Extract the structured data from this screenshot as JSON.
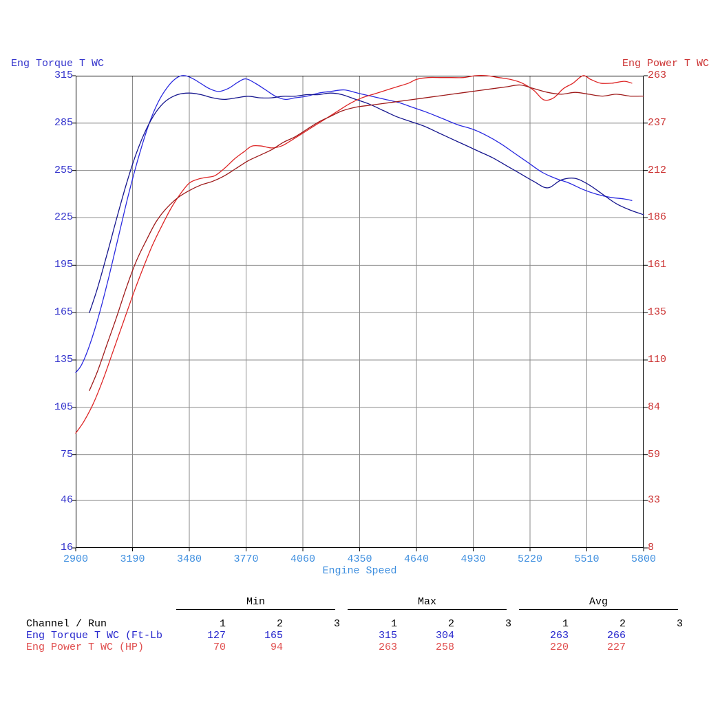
{
  "header": {
    "left_title": "Eng Torque T WC",
    "right_title": "Eng Power T WC"
  },
  "colors": {
    "left_axis": "#3333cc",
    "right_axis": "#cc3333",
    "x_axis": "#3f8fdf",
    "grid": "#8a8a8a",
    "border": "#000000",
    "table_text": "#000000",
    "torque_row": "#2525cc",
    "power_row": "#e04e4e"
  },
  "chart_data": {
    "type": "line",
    "grid": true,
    "x_axis": {
      "label": "Engine Speed",
      "range": [
        2900,
        5800
      ],
      "ticks": [
        2900,
        3190,
        3480,
        3770,
        4060,
        4350,
        4640,
        4930,
        5220,
        5510,
        5800
      ]
    },
    "y_left": {
      "title": "Eng Torque T WC",
      "units": "Ft-Lb",
      "range": [
        16,
        315
      ],
      "ticks": [
        315,
        285,
        255,
        225,
        195,
        165,
        135,
        105,
        75,
        46,
        16
      ]
    },
    "y_right": {
      "title": "Eng Power T WC",
      "units": "HP",
      "range": [
        8,
        263
      ],
      "ticks": [
        263,
        237,
        212,
        186,
        161,
        135,
        110,
        84,
        59,
        33,
        8
      ]
    },
    "series": [
      {
        "name": "Eng Torque T WC - Run 1",
        "axis": "left",
        "color": "#2a2ae0",
        "points": [
          [
            2900,
            127
          ],
          [
            2930,
            132
          ],
          [
            2970,
            144
          ],
          [
            3020,
            164
          ],
          [
            3070,
            188
          ],
          [
            3120,
            214
          ],
          [
            3170,
            240
          ],
          [
            3220,
            263
          ],
          [
            3270,
            283
          ],
          [
            3320,
            298
          ],
          [
            3370,
            308
          ],
          [
            3420,
            314
          ],
          [
            3460,
            315
          ],
          [
            3500,
            313
          ],
          [
            3540,
            310
          ],
          [
            3580,
            307
          ],
          [
            3630,
            305
          ],
          [
            3680,
            307
          ],
          [
            3730,
            311
          ],
          [
            3770,
            313
          ],
          [
            3820,
            310
          ],
          [
            3870,
            306
          ],
          [
            3920,
            302
          ],
          [
            3970,
            300
          ],
          [
            4020,
            301
          ],
          [
            4080,
            302
          ],
          [
            4140,
            304
          ],
          [
            4200,
            305
          ],
          [
            4270,
            306
          ],
          [
            4340,
            304
          ],
          [
            4410,
            302
          ],
          [
            4480,
            300
          ],
          [
            4550,
            298
          ],
          [
            4620,
            295
          ],
          [
            4690,
            292
          ],
          [
            4770,
            288
          ],
          [
            4850,
            284
          ],
          [
            4930,
            281
          ],
          [
            5000,
            277
          ],
          [
            5070,
            272
          ],
          [
            5140,
            266
          ],
          [
            5210,
            260
          ],
          [
            5280,
            254
          ],
          [
            5350,
            250
          ],
          [
            5420,
            247
          ],
          [
            5490,
            243
          ],
          [
            5560,
            240
          ],
          [
            5630,
            238
          ],
          [
            5700,
            237
          ],
          [
            5740,
            236
          ]
        ]
      },
      {
        "name": "Eng Torque T WC - Run 2",
        "axis": "left",
        "color": "#16168e",
        "points": [
          [
            2970,
            165
          ],
          [
            3010,
            180
          ],
          [
            3060,
            202
          ],
          [
            3110,
            225
          ],
          [
            3160,
            247
          ],
          [
            3210,
            266
          ],
          [
            3260,
            281
          ],
          [
            3310,
            292
          ],
          [
            3360,
            299
          ],
          [
            3420,
            303
          ],
          [
            3480,
            304
          ],
          [
            3540,
            303
          ],
          [
            3600,
            301
          ],
          [
            3660,
            300
          ],
          [
            3720,
            301
          ],
          [
            3780,
            302
          ],
          [
            3840,
            301
          ],
          [
            3900,
            301
          ],
          [
            3960,
            302
          ],
          [
            4020,
            302
          ],
          [
            4080,
            303
          ],
          [
            4140,
            303
          ],
          [
            4200,
            304
          ],
          [
            4260,
            303
          ],
          [
            4330,
            300
          ],
          [
            4400,
            297
          ],
          [
            4470,
            293
          ],
          [
            4540,
            289
          ],
          [
            4610,
            286
          ],
          [
            4680,
            283
          ],
          [
            4750,
            279
          ],
          [
            4820,
            275
          ],
          [
            4890,
            271
          ],
          [
            4960,
            267
          ],
          [
            5030,
            263
          ],
          [
            5100,
            258
          ],
          [
            5170,
            253
          ],
          [
            5240,
            248
          ],
          [
            5310,
            244
          ],
          [
            5380,
            249
          ],
          [
            5450,
            250
          ],
          [
            5520,
            246
          ],
          [
            5590,
            240
          ],
          [
            5660,
            234
          ],
          [
            5730,
            230
          ],
          [
            5800,
            227
          ]
        ]
      },
      {
        "name": "Eng Power T WC - Run 1",
        "axis": "right",
        "color": "#dd2525",
        "points": [
          [
            2900,
            70
          ],
          [
            2940,
            76
          ],
          [
            2990,
            86
          ],
          [
            3040,
            99
          ],
          [
            3090,
            114
          ],
          [
            3140,
            129
          ],
          [
            3190,
            144
          ],
          [
            3240,
            158
          ],
          [
            3290,
            171
          ],
          [
            3340,
            182
          ],
          [
            3390,
            192
          ],
          [
            3440,
            200
          ],
          [
            3480,
            205
          ],
          [
            3520,
            207
          ],
          [
            3560,
            208
          ],
          [
            3610,
            209
          ],
          [
            3660,
            213
          ],
          [
            3710,
            218
          ],
          [
            3760,
            222
          ],
          [
            3800,
            225
          ],
          [
            3850,
            225
          ],
          [
            3900,
            224
          ],
          [
            3950,
            225
          ],
          [
            4000,
            228
          ],
          [
            4060,
            232
          ],
          [
            4120,
            236
          ],
          [
            4180,
            240
          ],
          [
            4240,
            244
          ],
          [
            4300,
            248
          ],
          [
            4360,
            251
          ],
          [
            4420,
            253
          ],
          [
            4480,
            255
          ],
          [
            4540,
            257
          ],
          [
            4600,
            259
          ],
          [
            4640,
            261
          ],
          [
            4700,
            262
          ],
          [
            4760,
            262
          ],
          [
            4820,
            262
          ],
          [
            4880,
            262
          ],
          [
            4940,
            263
          ],
          [
            5000,
            263
          ],
          [
            5060,
            262
          ],
          [
            5120,
            261
          ],
          [
            5180,
            259
          ],
          [
            5240,
            255
          ],
          [
            5290,
            250
          ],
          [
            5340,
            251
          ],
          [
            5390,
            256
          ],
          [
            5440,
            259
          ],
          [
            5490,
            263
          ],
          [
            5530,
            261
          ],
          [
            5580,
            259
          ],
          [
            5640,
            259
          ],
          [
            5700,
            260
          ],
          [
            5740,
            259
          ]
        ]
      },
      {
        "name": "Eng Power T WC - Run 2",
        "axis": "right",
        "color": "#9e1a1a",
        "points": [
          [
            2970,
            93
          ],
          [
            3010,
            103
          ],
          [
            3060,
            118
          ],
          [
            3110,
            133
          ],
          [
            3160,
            149
          ],
          [
            3210,
            163
          ],
          [
            3260,
            174
          ],
          [
            3310,
            184
          ],
          [
            3360,
            191
          ],
          [
            3420,
            197
          ],
          [
            3480,
            201
          ],
          [
            3540,
            204
          ],
          [
            3600,
            206
          ],
          [
            3660,
            209
          ],
          [
            3720,
            213
          ],
          [
            3780,
            217
          ],
          [
            3840,
            220
          ],
          [
            3900,
            223
          ],
          [
            3960,
            227
          ],
          [
            4020,
            230
          ],
          [
            4080,
            234
          ],
          [
            4140,
            238
          ],
          [
            4200,
            241
          ],
          [
            4260,
            244
          ],
          [
            4330,
            246
          ],
          [
            4400,
            247
          ],
          [
            4470,
            248
          ],
          [
            4540,
            249
          ],
          [
            4610,
            250
          ],
          [
            4680,
            251
          ],
          [
            4750,
            252
          ],
          [
            4820,
            253
          ],
          [
            4890,
            254
          ],
          [
            4960,
            255
          ],
          [
            5030,
            256
          ],
          [
            5100,
            257
          ],
          [
            5170,
            258
          ],
          [
            5240,
            256
          ],
          [
            5310,
            254
          ],
          [
            5380,
            253
          ],
          [
            5450,
            254
          ],
          [
            5520,
            253
          ],
          [
            5590,
            252
          ],
          [
            5660,
            253
          ],
          [
            5730,
            252
          ],
          [
            5800,
            252
          ]
        ]
      }
    ]
  },
  "stats_table": {
    "groups": [
      "Min",
      "Max",
      "Avg"
    ],
    "run_columns": [
      "1",
      "2",
      "3"
    ],
    "row_header": "Channel / Run",
    "rows": [
      {
        "label": "Eng Torque T WC (Ft-Lb",
        "color": "#2525cc",
        "values": [
          "127",
          "165",
          "",
          "315",
          "304",
          "",
          "263",
          "266",
          ""
        ]
      },
      {
        "label": "Eng Power T WC (HP)",
        "color": "#e04e4e",
        "values": [
          "70",
          "94",
          "",
          "263",
          "258",
          "",
          "220",
          "227",
          ""
        ]
      }
    ]
  }
}
